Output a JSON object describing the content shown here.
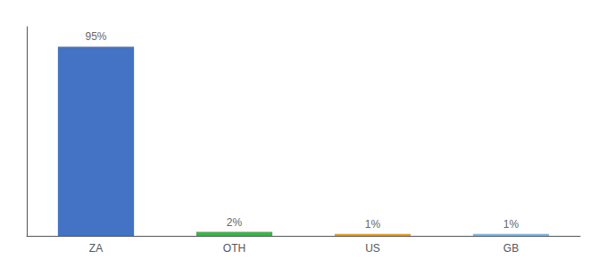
{
  "chart_data": {
    "type": "bar",
    "categories": [
      "ZA",
      "OTH",
      "US",
      "GB"
    ],
    "values": [
      95,
      2,
      1,
      1
    ],
    "value_labels": [
      "95%",
      "2%",
      "1%",
      "1%"
    ],
    "data_labels": true,
    "colors": [
      "#4472c4",
      "#3db34a",
      "#e6a020",
      "#7ab9e8"
    ],
    "ylim": [
      0,
      105
    ],
    "grid": false,
    "tick_labels": "x"
  }
}
